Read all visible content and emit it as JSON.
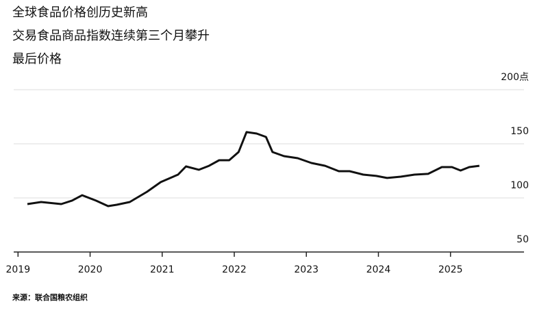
{
  "chart_data": {
    "type": "line",
    "title": "全球食品价格创历史新高",
    "subtitle": "交易食品商品指数连续第三个月攀升",
    "series_label": "最后价格",
    "source": "来源：联合国粮农组织",
    "x": [
      2019.13,
      2019.32,
      2019.6,
      2019.75,
      2019.89,
      2020.08,
      2020.25,
      2020.37,
      2020.55,
      2020.79,
      2020.98,
      2021.22,
      2021.33,
      2021.51,
      2021.65,
      2021.79,
      2021.93,
      2022.06,
      2022.17,
      2022.31,
      2022.44,
      2022.53,
      2022.69,
      2022.88,
      2023.07,
      2023.26,
      2023.45,
      2023.6,
      2023.79,
      2023.97,
      2024.12,
      2024.31,
      2024.5,
      2024.69,
      2024.88,
      2025.02,
      2025.14,
      2025.26,
      2025.4
    ],
    "values": [
      94.3,
      96.2,
      94.3,
      97.5,
      102.5,
      97.5,
      92.4,
      93.7,
      96.2,
      105.7,
      114.6,
      121.5,
      129.1,
      126.0,
      129.7,
      134.8,
      134.8,
      142.4,
      160.8,
      159.5,
      156.3,
      142.4,
      138.6,
      136.7,
      132.3,
      129.7,
      124.7,
      124.7,
      121.5,
      120.3,
      118.4,
      119.6,
      121.5,
      122.2,
      128.5,
      128.5,
      125.3,
      128.5,
      129.7
    ],
    "color": "#111111",
    "xlim": [
      2018.94,
      2026.02
    ],
    "xticks": [
      2019,
      2020,
      2021,
      2022,
      2023,
      2024,
      2025
    ],
    "ylim": [
      50,
      200
    ],
    "yticks": [
      50,
      100,
      150,
      {
        "value": 200,
        "label": "200点"
      }
    ],
    "grid": true
  }
}
